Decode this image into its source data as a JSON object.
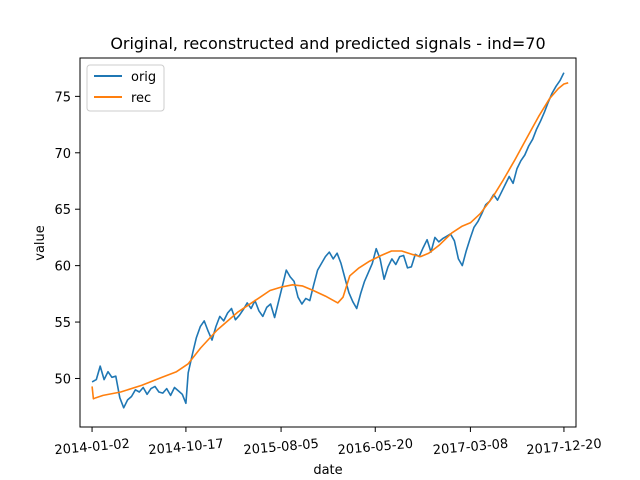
{
  "chart_data": {
    "type": "line",
    "title": "Original, reconstructed and predicted signals - ind=70",
    "xlabel": "date",
    "ylabel": "value",
    "x_range": [
      "2013-11-26",
      "2018-01-26"
    ],
    "ylim": [
      45.7,
      78.4
    ],
    "x_ticks": [
      "2014-01-02",
      "2014-10-17",
      "2015-08-05",
      "2016-05-20",
      "2017-03-08",
      "2017-12-20"
    ],
    "y_ticks": [
      50,
      55,
      60,
      65,
      70,
      75
    ],
    "grid": false,
    "legend_position": "upper left",
    "series": [
      {
        "name": "orig",
        "color": "#1f77b4",
        "points": [
          [
            "2014-01-02",
            49.7
          ],
          [
            "2014-01-15",
            49.9
          ],
          [
            "2014-01-27",
            51.1
          ],
          [
            "2014-02-08",
            49.9
          ],
          [
            "2014-02-20",
            50.6
          ],
          [
            "2014-03-04",
            50.1
          ],
          [
            "2014-03-16",
            50.2
          ],
          [
            "2014-03-28",
            48.3
          ],
          [
            "2014-04-09",
            47.4
          ],
          [
            "2014-04-21",
            48.1
          ],
          [
            "2014-05-03",
            48.4
          ],
          [
            "2014-05-15",
            49.0
          ],
          [
            "2014-05-27",
            48.8
          ],
          [
            "2014-06-08",
            49.2
          ],
          [
            "2014-06-20",
            48.6
          ],
          [
            "2014-07-02",
            49.1
          ],
          [
            "2014-07-14",
            49.3
          ],
          [
            "2014-07-26",
            48.8
          ],
          [
            "2014-08-07",
            48.7
          ],
          [
            "2014-08-19",
            49.1
          ],
          [
            "2014-08-31",
            48.5
          ],
          [
            "2014-09-12",
            49.2
          ],
          [
            "2014-09-24",
            48.9
          ],
          [
            "2014-10-06",
            48.6
          ],
          [
            "2014-10-17",
            47.8
          ],
          [
            "2014-10-24",
            50.5
          ],
          [
            "2014-11-07",
            52.3
          ],
          [
            "2014-11-18",
            53.6
          ],
          [
            "2014-11-30",
            54.6
          ],
          [
            "2014-12-12",
            55.1
          ],
          [
            "2014-12-24",
            54.2
          ],
          [
            "2015-01-05",
            53.4
          ],
          [
            "2015-01-17",
            54.6
          ],
          [
            "2015-01-29",
            55.5
          ],
          [
            "2015-02-10",
            55.1
          ],
          [
            "2015-02-22",
            55.8
          ],
          [
            "2015-03-06",
            56.2
          ],
          [
            "2015-03-18",
            55.2
          ],
          [
            "2015-03-30",
            55.6
          ],
          [
            "2015-04-11",
            56.1
          ],
          [
            "2015-04-23",
            56.7
          ],
          [
            "2015-05-05",
            56.2
          ],
          [
            "2015-05-17",
            56.9
          ],
          [
            "2015-05-29",
            56.0
          ],
          [
            "2015-06-10",
            55.5
          ],
          [
            "2015-06-22",
            56.3
          ],
          [
            "2015-07-04",
            56.6
          ],
          [
            "2015-07-16",
            55.4
          ],
          [
            "2015-07-28",
            56.8
          ],
          [
            "2015-08-09",
            58.2
          ],
          [
            "2015-08-21",
            59.6
          ],
          [
            "2015-09-02",
            59.0
          ],
          [
            "2015-09-14",
            58.6
          ],
          [
            "2015-09-26",
            57.2
          ],
          [
            "2015-10-08",
            56.6
          ],
          [
            "2015-10-20",
            57.1
          ],
          [
            "2015-11-01",
            56.9
          ],
          [
            "2015-11-13",
            58.3
          ],
          [
            "2015-11-25",
            59.6
          ],
          [
            "2015-12-07",
            60.2
          ],
          [
            "2015-12-19",
            60.8
          ],
          [
            "2015-12-31",
            61.2
          ],
          [
            "2016-01-12",
            60.6
          ],
          [
            "2016-01-24",
            61.1
          ],
          [
            "2016-02-05",
            60.2
          ],
          [
            "2016-02-17",
            58.9
          ],
          [
            "2016-02-29",
            57.6
          ],
          [
            "2016-03-12",
            56.8
          ],
          [
            "2016-03-24",
            56.2
          ],
          [
            "2016-04-05",
            57.5
          ],
          [
            "2016-04-17",
            58.6
          ],
          [
            "2016-04-29",
            59.4
          ],
          [
            "2016-05-11",
            60.2
          ],
          [
            "2016-05-23",
            61.5
          ],
          [
            "2016-06-04",
            60.6
          ],
          [
            "2016-06-16",
            58.8
          ],
          [
            "2016-06-28",
            59.9
          ],
          [
            "2016-07-10",
            60.6
          ],
          [
            "2016-07-22",
            60.1
          ],
          [
            "2016-08-03",
            60.8
          ],
          [
            "2016-08-15",
            60.9
          ],
          [
            "2016-08-27",
            59.8
          ],
          [
            "2016-09-08",
            59.9
          ],
          [
            "2016-09-20",
            61.0
          ],
          [
            "2016-10-02",
            60.8
          ],
          [
            "2016-10-14",
            61.6
          ],
          [
            "2016-10-26",
            62.3
          ],
          [
            "2016-11-07",
            61.2
          ],
          [
            "2016-11-19",
            62.5
          ],
          [
            "2016-12-01",
            62.1
          ],
          [
            "2016-12-13",
            62.4
          ],
          [
            "2016-12-25",
            62.6
          ],
          [
            "2017-01-06",
            62.8
          ],
          [
            "2017-01-18",
            62.2
          ],
          [
            "2017-01-30",
            60.6
          ],
          [
            "2017-02-11",
            60.0
          ],
          [
            "2017-02-23",
            61.3
          ],
          [
            "2017-03-07",
            62.4
          ],
          [
            "2017-03-19",
            63.4
          ],
          [
            "2017-03-31",
            63.9
          ],
          [
            "2017-04-12",
            64.6
          ],
          [
            "2017-04-24",
            65.4
          ],
          [
            "2017-05-06",
            65.7
          ],
          [
            "2017-05-18",
            66.3
          ],
          [
            "2017-05-30",
            65.8
          ],
          [
            "2017-06-11",
            66.5
          ],
          [
            "2017-06-23",
            67.2
          ],
          [
            "2017-07-05",
            67.9
          ],
          [
            "2017-07-17",
            67.3
          ],
          [
            "2017-07-29",
            68.6
          ],
          [
            "2017-08-10",
            69.3
          ],
          [
            "2017-08-22",
            69.8
          ],
          [
            "2017-09-03",
            70.6
          ],
          [
            "2017-09-15",
            71.2
          ],
          [
            "2017-09-27",
            72.1
          ],
          [
            "2017-10-09",
            72.8
          ],
          [
            "2017-10-21",
            73.6
          ],
          [
            "2017-11-02",
            74.5
          ],
          [
            "2017-11-14",
            75.3
          ],
          [
            "2017-11-26",
            75.9
          ],
          [
            "2017-12-08",
            76.4
          ],
          [
            "2017-12-20",
            77.1
          ]
        ]
      },
      {
        "name": "rec",
        "color": "#ff7f0e",
        "points": [
          [
            "2014-01-02",
            49.3
          ],
          [
            "2014-01-06",
            48.2
          ],
          [
            "2014-01-14",
            48.3
          ],
          [
            "2014-02-05",
            48.5
          ],
          [
            "2014-03-31",
            48.8
          ],
          [
            "2014-06-04",
            49.4
          ],
          [
            "2014-08-05",
            50.1
          ],
          [
            "2014-09-18",
            50.6
          ],
          [
            "2014-10-24",
            51.3
          ],
          [
            "2014-12-01",
            52.7
          ],
          [
            "2015-01-21",
            54.3
          ],
          [
            "2015-03-26",
            55.9
          ],
          [
            "2015-05-27",
            57.1
          ],
          [
            "2015-07-02",
            57.8
          ],
          [
            "2015-08-05",
            58.1
          ],
          [
            "2015-09-09",
            58.3
          ],
          [
            "2015-10-09",
            58.2
          ],
          [
            "2015-11-12",
            57.8
          ],
          [
            "2015-12-19",
            57.3
          ],
          [
            "2016-01-26",
            56.7
          ],
          [
            "2016-02-11",
            57.2
          ],
          [
            "2016-03-03",
            59.1
          ],
          [
            "2016-03-31",
            59.8
          ],
          [
            "2016-05-03",
            60.4
          ],
          [
            "2016-06-07",
            60.9
          ],
          [
            "2016-07-09",
            61.3
          ],
          [
            "2016-08-09",
            61.3
          ],
          [
            "2016-09-09",
            61.0
          ],
          [
            "2016-10-06",
            60.8
          ],
          [
            "2016-10-31",
            61.1
          ],
          [
            "2016-12-02",
            61.8
          ],
          [
            "2017-01-10",
            62.9
          ],
          [
            "2017-02-11",
            63.5
          ],
          [
            "2017-03-08",
            63.8
          ],
          [
            "2017-04-07",
            64.6
          ],
          [
            "2017-05-14",
            66.0
          ],
          [
            "2017-06-17",
            67.6
          ],
          [
            "2017-07-21",
            69.3
          ],
          [
            "2017-08-26",
            71.2
          ],
          [
            "2017-10-03",
            73.2
          ],
          [
            "2017-11-06",
            74.8
          ],
          [
            "2017-12-03",
            75.7
          ],
          [
            "2017-12-20",
            76.1
          ],
          [
            "2018-01-02",
            76.2
          ]
        ]
      }
    ]
  }
}
